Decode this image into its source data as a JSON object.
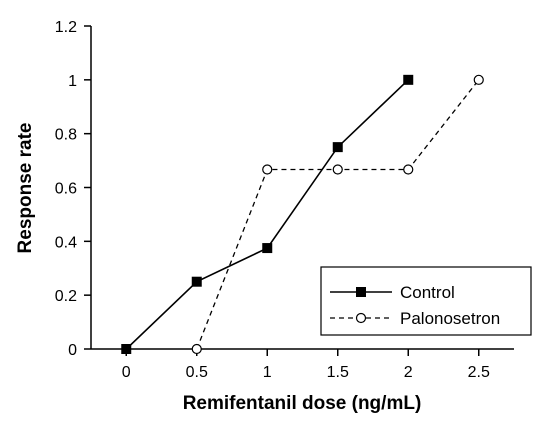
{
  "chart_data": {
    "type": "line",
    "title": "",
    "xlabel": "Remifentanil dose (ng/mL)",
    "ylabel": "Response rate",
    "xlim": [
      -0.25,
      2.75
    ],
    "ylim": [
      0,
      1.2
    ],
    "x_ticks": [
      "0",
      "0.5",
      "1",
      "1.5",
      "2",
      "2.5"
    ],
    "y_ticks": [
      "0",
      "0.2",
      "0.4",
      "0.6",
      "0.8",
      "1",
      "1.2"
    ],
    "grid": false,
    "legend_position": "bottom-right",
    "series": [
      {
        "name": "Control",
        "line_style": "solid",
        "marker": "filled-square",
        "color": "#000000",
        "x": [
          0,
          0.5,
          1,
          1.5,
          2
        ],
        "y": [
          0,
          0.25,
          0.375,
          0.75,
          1
        ]
      },
      {
        "name": "Palonosetron",
        "line_style": "dashed",
        "marker": "open-circle",
        "color": "#000000",
        "x": [
          0.5,
          1,
          1.5,
          2,
          2.5
        ],
        "y": [
          0,
          0.667,
          0.667,
          0.667,
          1
        ]
      }
    ]
  }
}
